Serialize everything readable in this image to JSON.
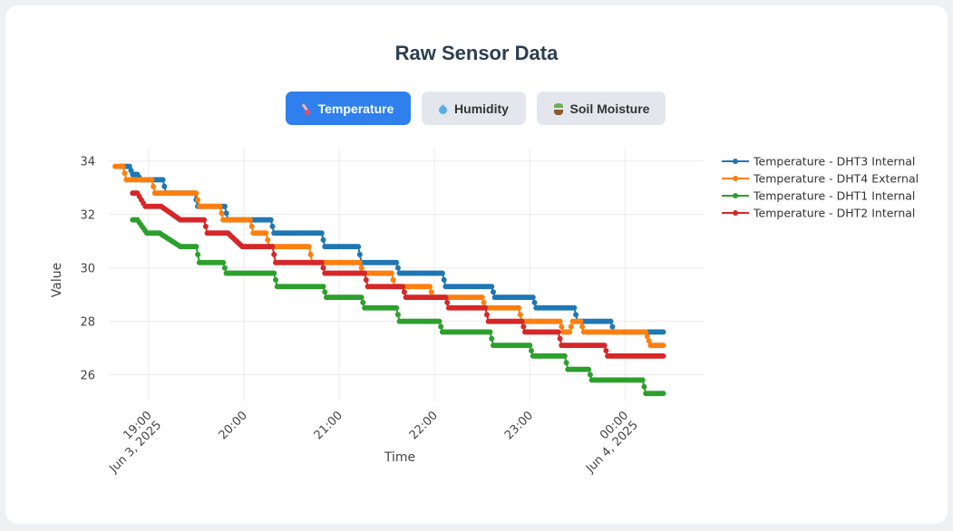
{
  "header": {
    "title": "Raw Sensor Data"
  },
  "tabs": [
    {
      "label": "Temperature",
      "icon": "thermometer-icon",
      "active": true
    },
    {
      "label": "Humidity",
      "icon": "droplet-icon",
      "active": false
    },
    {
      "label": "Soil Moisture",
      "icon": "seedling-icon",
      "active": false
    }
  ],
  "colors": {
    "accent": "#2f80ed"
  },
  "chart_data": {
    "type": "line",
    "xlabel": "Time",
    "ylabel": "Value",
    "ylim": [
      25,
      34.5
    ],
    "xlim": [
      "2025-06-03 18:35",
      "2025-06-04 00:50"
    ],
    "y_ticks": [
      26,
      28,
      30,
      32,
      34
    ],
    "x_ticks": [
      {
        "t": "2025-06-03 19:00",
        "line1": "19:00",
        "line2": "Jun 3, 2025"
      },
      {
        "t": "2025-06-03 20:00",
        "line1": "20:00",
        "line2": ""
      },
      {
        "t": "2025-06-03 21:00",
        "line1": "21:00",
        "line2": ""
      },
      {
        "t": "2025-06-03 22:00",
        "line1": "22:00",
        "line2": ""
      },
      {
        "t": "2025-06-03 23:00",
        "line1": "23:00",
        "line2": ""
      },
      {
        "t": "2025-06-04 00:00",
        "line1": "00:00",
        "line2": "Jun 4, 2025"
      }
    ],
    "legend_position": "right",
    "grid": true,
    "series": [
      {
        "name": "Temperature - DHT3 Internal",
        "color": "#1f77b4",
        "points": [
          [
            "2025-06-03 18:43",
            33.8
          ],
          [
            "2025-06-03 18:48",
            33.8
          ],
          [
            "2025-06-03 18:50",
            33.5
          ],
          [
            "2025-06-03 18:53",
            33.5
          ],
          [
            "2025-06-03 18:55",
            33.3
          ],
          [
            "2025-06-03 19:09",
            33.3
          ],
          [
            "2025-06-03 19:11",
            32.8
          ],
          [
            "2025-06-03 19:29",
            32.8
          ],
          [
            "2025-06-03 19:31",
            32.3
          ],
          [
            "2025-06-03 19:48",
            32.3
          ],
          [
            "2025-06-03 19:50",
            31.8
          ],
          [
            "2025-06-03 20:17",
            31.8
          ],
          [
            "2025-06-03 20:19",
            31.3
          ],
          [
            "2025-06-03 20:49",
            31.3
          ],
          [
            "2025-06-03 20:51",
            30.8
          ],
          [
            "2025-06-03 21:12",
            30.8
          ],
          [
            "2025-06-03 21:14",
            30.2
          ],
          [
            "2025-06-03 21:36",
            30.2
          ],
          [
            "2025-06-03 21:38",
            29.8
          ],
          [
            "2025-06-03 22:05",
            29.8
          ],
          [
            "2025-06-03 22:07",
            29.3
          ],
          [
            "2025-06-03 22:36",
            29.3
          ],
          [
            "2025-06-03 22:38",
            28.9
          ],
          [
            "2025-06-03 23:02",
            28.9
          ],
          [
            "2025-06-03 23:04",
            28.5
          ],
          [
            "2025-06-03 23:28",
            28.5
          ],
          [
            "2025-06-03 23:30",
            28.0
          ],
          [
            "2025-06-03 23:51",
            28.0
          ],
          [
            "2025-06-03 23:53",
            27.6
          ],
          [
            "2025-06-04 00:24",
            27.6
          ]
        ]
      },
      {
        "name": "Temperature - DHT4 External",
        "color": "#ff7f0e",
        "points": [
          [
            "2025-06-03 18:39",
            33.8
          ],
          [
            "2025-06-03 18:44",
            33.8
          ],
          [
            "2025-06-03 18:46",
            33.3
          ],
          [
            "2025-06-03 19:02",
            33.3
          ],
          [
            "2025-06-03 19:04",
            32.8
          ],
          [
            "2025-06-03 19:30",
            32.8
          ],
          [
            "2025-06-03 19:32",
            32.3
          ],
          [
            "2025-06-03 19:45",
            32.3
          ],
          [
            "2025-06-03 19:47",
            31.8
          ],
          [
            "2025-06-03 20:04",
            31.8
          ],
          [
            "2025-06-03 20:06",
            31.3
          ],
          [
            "2025-06-03 20:14",
            31.3
          ],
          [
            "2025-06-03 20:16",
            30.8
          ],
          [
            "2025-06-03 20:41",
            30.8
          ],
          [
            "2025-06-03 20:43",
            30.2
          ],
          [
            "2025-06-03 21:13",
            30.2
          ],
          [
            "2025-06-03 21:15",
            29.8
          ],
          [
            "2025-06-03 21:33",
            29.8
          ],
          [
            "2025-06-03 21:35",
            29.3
          ],
          [
            "2025-06-03 21:57",
            29.3
          ],
          [
            "2025-06-03 21:59",
            28.9
          ],
          [
            "2025-06-03 22:30",
            28.9
          ],
          [
            "2025-06-03 22:32",
            28.5
          ],
          [
            "2025-06-03 22:53",
            28.5
          ],
          [
            "2025-06-03 22:55",
            28.0
          ],
          [
            "2025-06-03 23:19",
            28.0
          ],
          [
            "2025-06-03 23:21",
            27.6
          ],
          [
            "2025-06-03 23:25",
            27.6
          ],
          [
            "2025-06-03 23:27",
            28.0
          ],
          [
            "2025-06-03 23:32",
            28.0
          ],
          [
            "2025-06-03 23:34",
            27.6
          ],
          [
            "2025-06-04 00:13",
            27.6
          ],
          [
            "2025-06-04 00:16",
            27.1
          ],
          [
            "2025-06-04 00:24",
            27.1
          ]
        ]
      },
      {
        "name": "Temperature - DHT1 Internal",
        "color": "#2ca02c",
        "points": [
          [
            "2025-06-03 18:50",
            31.8
          ],
          [
            "2025-06-03 18:53",
            31.8
          ],
          [
            "2025-06-03 18:59",
            31.3
          ],
          [
            "2025-06-03 19:07",
            31.3
          ],
          [
            "2025-06-03 19:20",
            30.8
          ],
          [
            "2025-06-03 19:30",
            30.8
          ],
          [
            "2025-06-03 19:32",
            30.2
          ],
          [
            "2025-06-03 19:47",
            30.2
          ],
          [
            "2025-06-03 19:49",
            29.8
          ],
          [
            "2025-06-03 20:01",
            29.8
          ],
          [
            "2025-06-03 20:03",
            29.8
          ],
          [
            "2025-06-03 20:19",
            29.8
          ],
          [
            "2025-06-03 20:21",
            29.3
          ],
          [
            "2025-06-03 20:50",
            29.3
          ],
          [
            "2025-06-03 20:52",
            28.9
          ],
          [
            "2025-06-03 21:14",
            28.9
          ],
          [
            "2025-06-03 21:16",
            28.5
          ],
          [
            "2025-06-03 21:36",
            28.5
          ],
          [
            "2025-06-03 21:38",
            28.0
          ],
          [
            "2025-06-03 22:03",
            28.0
          ],
          [
            "2025-06-03 22:05",
            27.6
          ],
          [
            "2025-06-03 22:35",
            27.6
          ],
          [
            "2025-06-03 22:37",
            27.1
          ],
          [
            "2025-06-03 23:00",
            27.1
          ],
          [
            "2025-06-03 23:02",
            26.7
          ],
          [
            "2025-06-03 23:22",
            26.7
          ],
          [
            "2025-06-03 23:24",
            26.2
          ],
          [
            "2025-06-03 23:37",
            26.2
          ],
          [
            "2025-06-03 23:39",
            25.8
          ],
          [
            "2025-06-04 00:11",
            25.8
          ],
          [
            "2025-06-04 00:13",
            25.3
          ],
          [
            "2025-06-04 00:24",
            25.3
          ]
        ]
      },
      {
        "name": "Temperature - DHT2 Internal",
        "color": "#d62728",
        "points": [
          [
            "2025-06-03 18:50",
            32.8
          ],
          [
            "2025-06-03 18:53",
            32.8
          ],
          [
            "2025-06-03 18:58",
            32.3
          ],
          [
            "2025-06-03 19:08",
            32.3
          ],
          [
            "2025-06-03 19:20",
            31.8
          ],
          [
            "2025-06-03 19:35",
            31.8
          ],
          [
            "2025-06-03 19:37",
            31.3
          ],
          [
            "2025-06-03 19:50",
            31.3
          ],
          [
            "2025-06-03 19:59",
            30.8
          ],
          [
            "2025-06-03 20:18",
            30.8
          ],
          [
            "2025-06-03 20:20",
            30.2
          ],
          [
            "2025-06-03 20:49",
            30.2
          ],
          [
            "2025-06-03 20:51",
            29.8
          ],
          [
            "2025-06-03 21:16",
            29.8
          ],
          [
            "2025-06-03 21:18",
            29.3
          ],
          [
            "2025-06-03 21:40",
            29.3
          ],
          [
            "2025-06-03 21:42",
            28.9
          ],
          [
            "2025-06-03 22:07",
            28.9
          ],
          [
            "2025-06-03 22:09",
            28.5
          ],
          [
            "2025-06-03 22:32",
            28.5
          ],
          [
            "2025-06-03 22:34",
            28.0
          ],
          [
            "2025-06-03 22:55",
            28.0
          ],
          [
            "2025-06-03 22:57",
            27.6
          ],
          [
            "2025-06-03 23:18",
            27.6
          ],
          [
            "2025-06-03 23:20",
            27.1
          ],
          [
            "2025-06-03 23:47",
            27.1
          ],
          [
            "2025-06-03 23:49",
            26.7
          ],
          [
            "2025-06-04 00:24",
            26.7
          ]
        ]
      }
    ]
  }
}
